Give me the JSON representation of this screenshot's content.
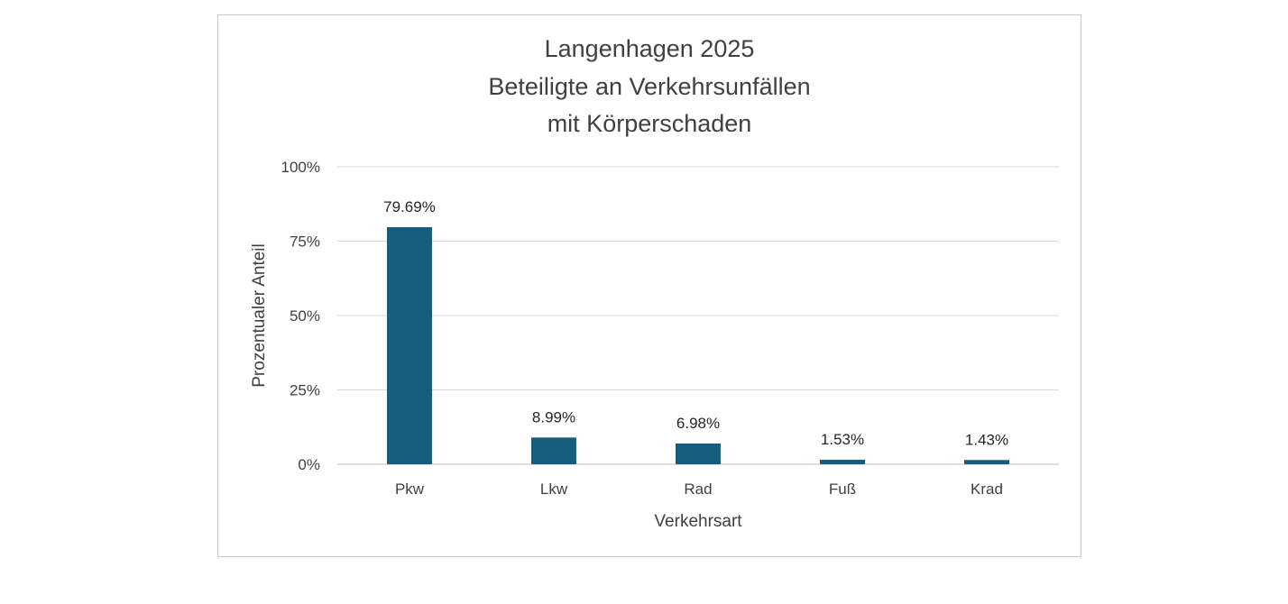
{
  "chart_data": {
    "type": "bar",
    "title": [
      "Langenhagen 2025",
      "Beteiligte an Verkehrsunfällen",
      "mit Körperschaden"
    ],
    "xlabel": "Verkehrsart",
    "ylabel": "Prozentualer Anteil",
    "categories": [
      "Pkw",
      "Lkw",
      "Rad",
      "Fuß",
      "Krad"
    ],
    "values": [
      79.69,
      8.99,
      6.98,
      1.53,
      1.43
    ],
    "data_labels": [
      "79.69%",
      "8.99%",
      "6.98%",
      "1.53%",
      "1.43%"
    ],
    "ylim": [
      0,
      100
    ],
    "y_ticks": [
      0,
      25,
      50,
      75,
      100
    ],
    "y_tick_labels": [
      "0%",
      "25%",
      "50%",
      "75%",
      "100%"
    ],
    "grid": true,
    "legend": "none",
    "bar_color": "#175E7E",
    "gridline_color": "#d9d9d9",
    "axis_color": "#bfbfbf"
  }
}
